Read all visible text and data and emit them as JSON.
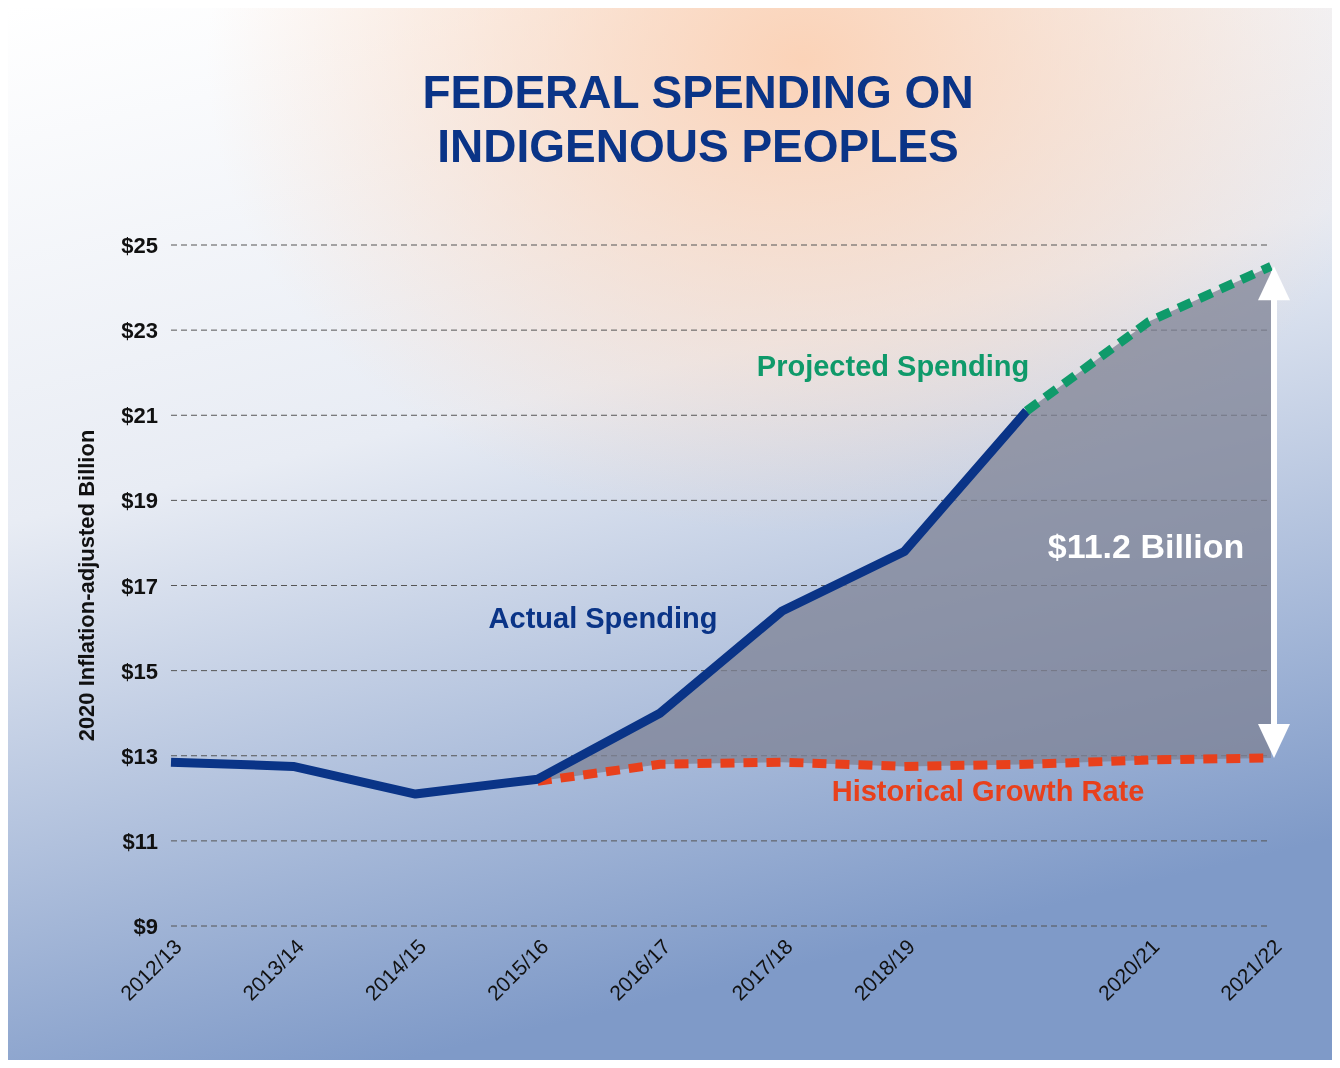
{
  "chart_data": {
    "type": "line",
    "title": "FEDERAL SPENDING ON\nINDIGENOUS PEOPLES",
    "ylabel": "2020 Inflation-adjusted Billion",
    "categories": [
      "2012/13",
      "2013/14",
      "2014/15",
      "2015/16",
      "2016/17",
      "2017/18",
      "2018/19",
      null,
      "2020/21",
      "2021/22"
    ],
    "series": [
      {
        "name": "Historical Growth Rate",
        "color": "#e8401c",
        "line_style": "dashed",
        "values": [
          null,
          null,
          null,
          12.4,
          12.8,
          12.85,
          12.75,
          12.8,
          12.9,
          12.95
        ],
        "lower": [
          null,
          null,
          null,
          12.4,
          12.8,
          12.85,
          12.75,
          12.8,
          12.9,
          12.95
        ],
        "upper": [
          null,
          null,
          null,
          12.45,
          14.0,
          16.4,
          17.8,
          21.1,
          23.2,
          24.5
        ]
      },
      {
        "name": "Actual Spending",
        "color": "#0a3487",
        "line_style": "solid",
        "values": [
          12.85,
          12.75,
          12.1,
          12.45,
          14.0,
          16.4,
          17.8,
          21.1,
          null,
          null
        ]
      },
      {
        "name": "Projected Spending",
        "color": "#0f9a6a",
        "line_style": "dashed",
        "values": [
          null,
          null,
          null,
          null,
          null,
          null,
          null,
          21.1,
          23.2,
          24.5
        ]
      }
    ],
    "ylim": [
      9,
      25
    ],
    "yticks": [
      {
        "value": 9,
        "label": "$9"
      },
      {
        "value": 11,
        "label": "$11"
      },
      {
        "value": 13,
        "label": "$13"
      },
      {
        "value": 15,
        "label": "$15"
      },
      {
        "value": 17,
        "label": "$17"
      },
      {
        "value": 19,
        "label": "$19"
      },
      {
        "value": 21,
        "label": "$21"
      },
      {
        "value": 23,
        "label": "$23"
      },
      {
        "value": 25,
        "label": "$25"
      }
    ],
    "grid": "y",
    "legend": false,
    "annotations": [
      "$11.2 Billion"
    ]
  }
}
